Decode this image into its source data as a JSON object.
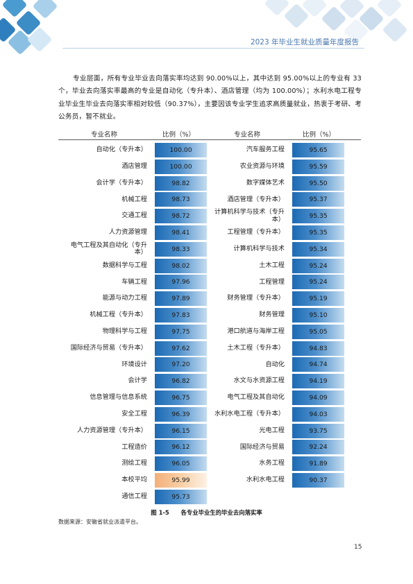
{
  "header": {
    "title": "2023 年毕业生就业质量年度报告"
  },
  "intro": "专业层面，所有专业毕业去向落实率均达到 90.00%以上，其中达到 95.00%以上的专业有 33 个，毕业去向落实率最高的专业是自动化（专升本）、酒店管理（均为 100.00%）；水利水电工程专业毕业生毕业去向落实率相对较低（90.37%），主要因该专业学生追求高质量就业，热衷于考研、考公务员，暂不就业。",
  "table": {
    "columns": [
      "专业名称",
      "比例（%）",
      "专业名称",
      "比例（%）"
    ],
    "left": [
      {
        "name": "自动化（专升本）",
        "value": "100.00"
      },
      {
        "name": "酒店管理",
        "value": "100.00"
      },
      {
        "name": "会计学（专升本）",
        "value": "98.82"
      },
      {
        "name": "机械工程",
        "value": "98.73"
      },
      {
        "name": "交通工程",
        "value": "98.72"
      },
      {
        "name": "人力资源管理",
        "value": "98.41"
      },
      {
        "name": "电气工程及其自动化（专升本）",
        "value": "98.33"
      },
      {
        "name": "数据科学与工程",
        "value": "98.02"
      },
      {
        "name": "车辆工程",
        "value": "97.96"
      },
      {
        "name": "能源与动力工程",
        "value": "97.89"
      },
      {
        "name": "机械工程（专升本）",
        "value": "97.83"
      },
      {
        "name": "物理科学与工程",
        "value": "97.75"
      },
      {
        "name": "国际经济与贸易（专升本）",
        "value": "97.62"
      },
      {
        "name": "环境设计",
        "value": "97.20"
      },
      {
        "name": "会计学",
        "value": "96.82"
      },
      {
        "name": "信息管理与信息系统",
        "value": "96.75"
      },
      {
        "name": "安全工程",
        "value": "96.39"
      },
      {
        "name": "人力资源管理（专升本）",
        "value": "96.15"
      },
      {
        "name": "工程造价",
        "value": "96.12"
      },
      {
        "name": "测绘工程",
        "value": "96.05"
      },
      {
        "name": "本校平均",
        "value": "95.99",
        "highlight": true
      },
      {
        "name": "通信工程",
        "value": "95.73"
      }
    ],
    "right": [
      {
        "name": "汽车服务工程",
        "value": "95.65"
      },
      {
        "name": "农业资源与环境",
        "value": "95.59"
      },
      {
        "name": "数字媒体艺术",
        "value": "95.50"
      },
      {
        "name": "酒店管理（专升本）",
        "value": "95.37"
      },
      {
        "name": "计算机科学与技术（专升本）",
        "value": "95.35"
      },
      {
        "name": "工程管理（专升本）",
        "value": "95.35"
      },
      {
        "name": "计算机科学与技术",
        "value": "95.34"
      },
      {
        "name": "土木工程",
        "value": "95.24"
      },
      {
        "name": "工程管理",
        "value": "95.24"
      },
      {
        "name": "财务管理（专升本）",
        "value": "95.19"
      },
      {
        "name": "财务管理",
        "value": "95.10"
      },
      {
        "name": "港口航道与海岸工程",
        "value": "95.05"
      },
      {
        "name": "土木工程（专升本）",
        "value": "94.83"
      },
      {
        "name": "自动化",
        "value": "94.74"
      },
      {
        "name": "水文与水资源工程",
        "value": "94.19"
      },
      {
        "name": "电气工程及其自动化",
        "value": "94.09"
      },
      {
        "name": "水利水电工程（专升本）",
        "value": "94.03"
      },
      {
        "name": "光电工程",
        "value": "93.75"
      },
      {
        "name": "国际经济与贸易",
        "value": "92.24"
      },
      {
        "name": "水务工程",
        "value": "91.89"
      },
      {
        "name": "水利水电工程",
        "value": "90.37"
      }
    ]
  },
  "caption": "图 1-5　　各专业毕业生的毕业去向落实率",
  "source": "数据来源：安徽省就业派遣平台。",
  "page_number": "15",
  "colors": {
    "bar_start": "#1c6ab4",
    "bar_end": "#c4dcef",
    "highlight_start": "#f3b07a",
    "header_text": "#4a78b0"
  }
}
